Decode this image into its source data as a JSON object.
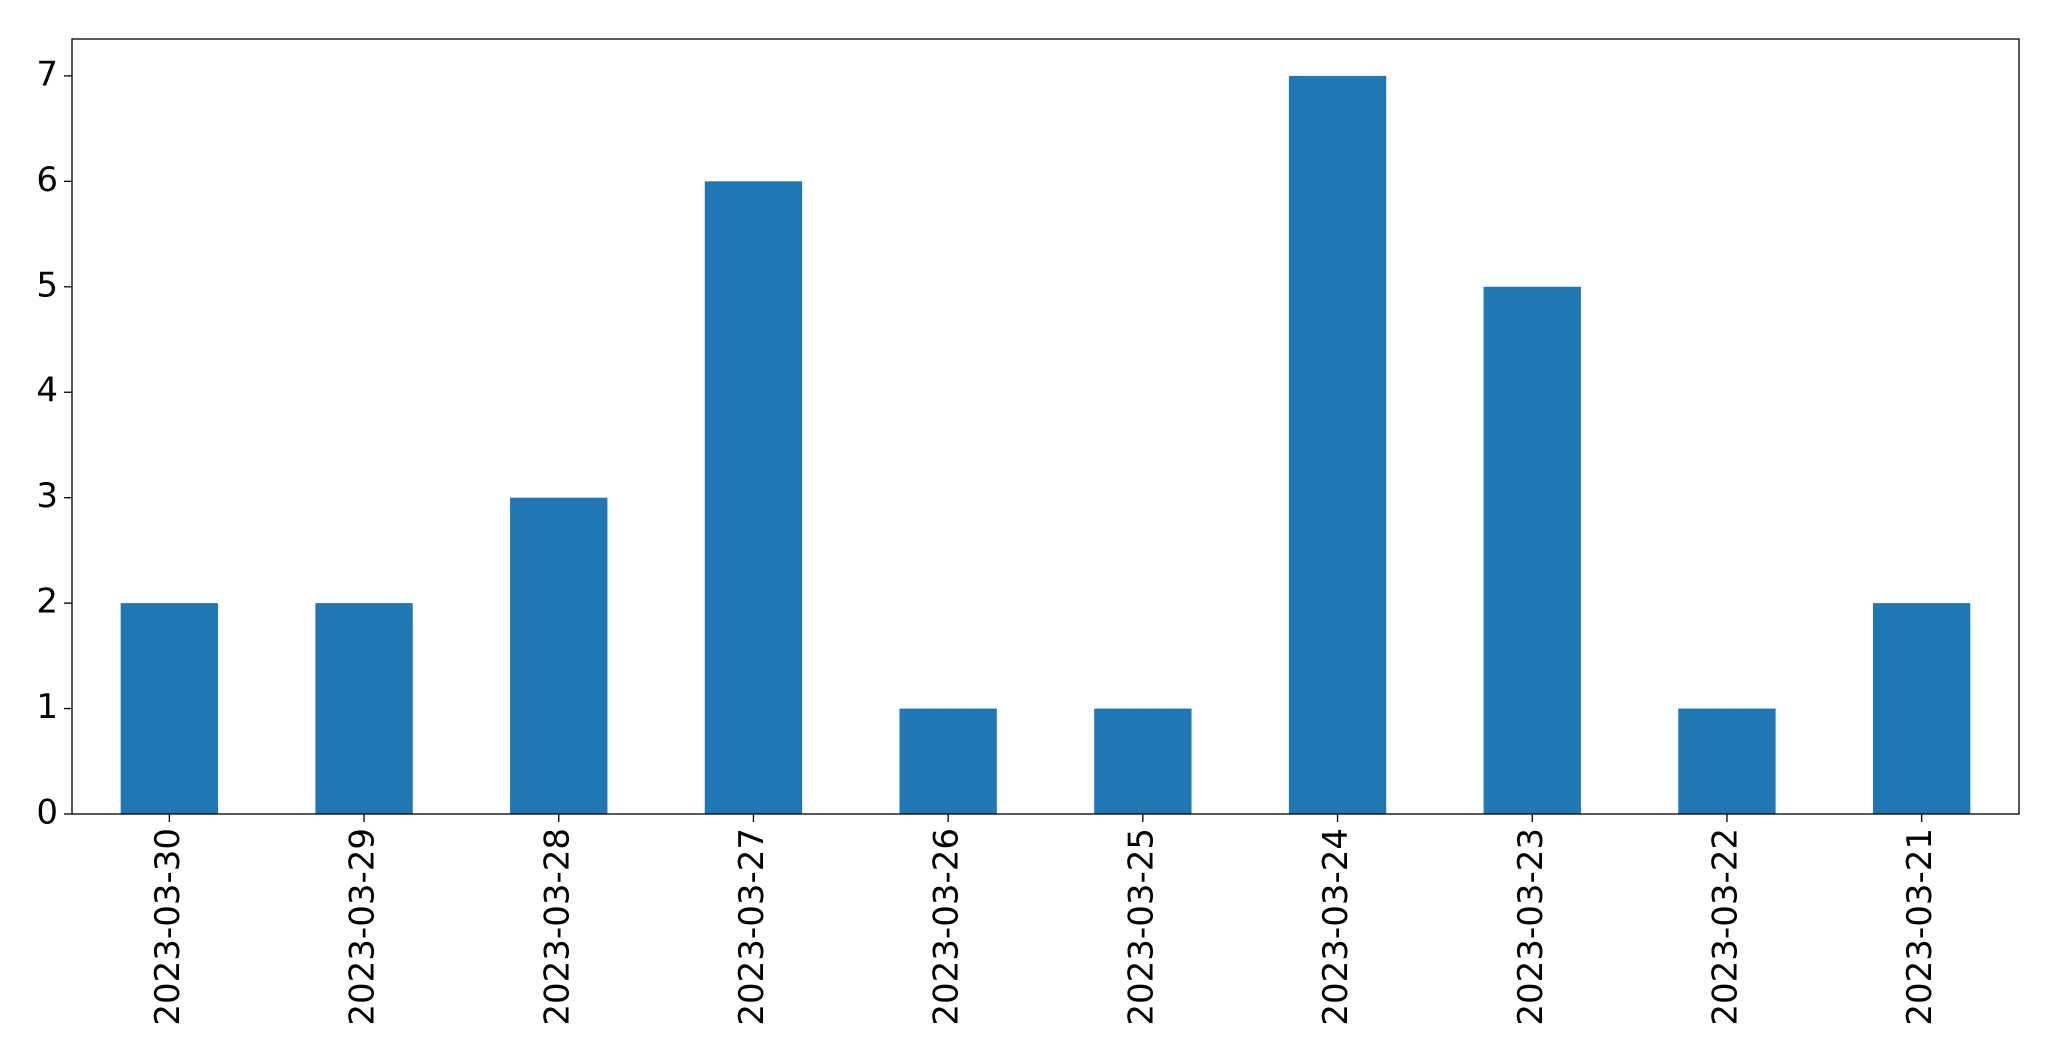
{
  "chart_data": {
    "type": "bar",
    "categories": [
      "2023-03-30",
      "2023-03-29",
      "2023-03-28",
      "2023-03-27",
      "2023-03-26",
      "2023-03-25",
      "2023-03-24",
      "2023-03-23",
      "2023-03-22",
      "2023-03-21"
    ],
    "values": [
      2,
      2,
      3,
      6,
      1,
      1,
      7,
      5,
      1,
      2
    ],
    "color": "#1f77b4",
    "ylim": [
      0,
      7.35
    ],
    "yticks": [
      0,
      1,
      2,
      3,
      4,
      5,
      6,
      7
    ],
    "grid": false
  }
}
